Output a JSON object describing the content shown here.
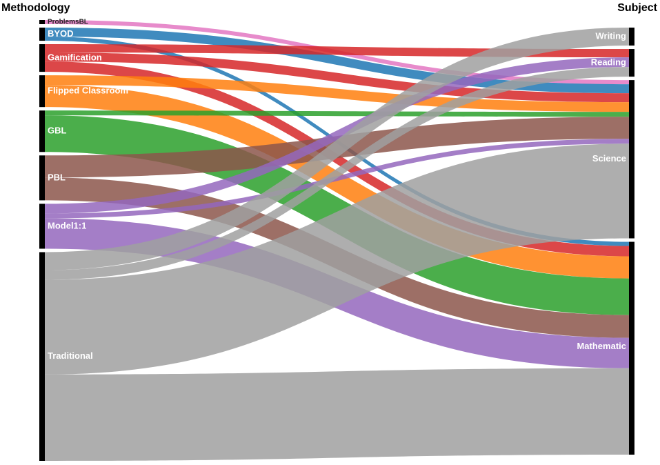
{
  "chart_data": {
    "type": "sankey",
    "source_label": "Methodology",
    "target_label": "Subject",
    "sources": [
      {
        "name": "ProblemsBL",
        "color": "#e377c2"
      },
      {
        "name": "BYOD",
        "color": "#1f77b4"
      },
      {
        "name": "Gamification",
        "color": "#d62728"
      },
      {
        "name": "Flipped Classroom",
        "color": "#ff7f0e"
      },
      {
        "name": "GBL",
        "color": "#2ca02c"
      },
      {
        "name": "PBL",
        "color": "#8c564b"
      },
      {
        "name": "Model1:1",
        "color": "#9467bd"
      },
      {
        "name": "Traditional",
        "color": "#a0a0a0"
      }
    ],
    "targets": [
      "Writing",
      "Reading",
      "Science",
      "Mathematic"
    ],
    "links": [
      {
        "source": 0,
        "target": 2,
        "value": 6
      },
      {
        "source": 1,
        "target": 2,
        "value": 13
      },
      {
        "source": 1,
        "target": 3,
        "value": 6
      },
      {
        "source": 2,
        "target": 1,
        "value": 12
      },
      {
        "source": 2,
        "target": 2,
        "value": 13
      },
      {
        "source": 2,
        "target": 3,
        "value": 15
      },
      {
        "source": 3,
        "target": 2,
        "value": 14
      },
      {
        "source": 3,
        "target": 3,
        "value": 32
      },
      {
        "source": 4,
        "target": 2,
        "value": 7
      },
      {
        "source": 4,
        "target": 3,
        "value": 53
      },
      {
        "source": 5,
        "target": 2,
        "value": 32
      },
      {
        "source": 5,
        "target": 3,
        "value": 33
      },
      {
        "source": 6,
        "target": 1,
        "value": 14
      },
      {
        "source": 6,
        "target": 2,
        "value": 7
      },
      {
        "source": 6,
        "target": 3,
        "value": 44
      },
      {
        "source": 7,
        "target": 0,
        "value": 26
      },
      {
        "source": 7,
        "target": 1,
        "value": 14
      },
      {
        "source": 7,
        "target": 2,
        "value": 137
      },
      {
        "source": 7,
        "target": 3,
        "value": 125
      }
    ]
  }
}
